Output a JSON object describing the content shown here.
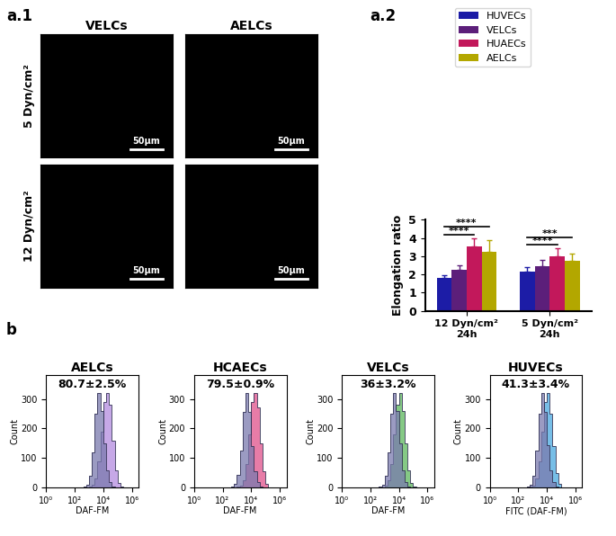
{
  "panel_labels": [
    "a.1",
    "a.2",
    "b"
  ],
  "micrographs": {
    "columns": [
      "VELCs",
      "AELCs"
    ],
    "rows": [
      "5 Dyn/cm²",
      "12 Dyn/cm²"
    ],
    "scale_bar": "50µm"
  },
  "chart_data": [
    {
      "type": "bar",
      "categories": [
        "12 Dyn/cm²\n24h",
        "5 Dyn/cm²\n24h"
      ],
      "y_label": "Elongation ratio",
      "ylim": [
        0,
        5
      ],
      "yticks": [
        0,
        1,
        2,
        3,
        4,
        5
      ],
      "legend": "upper center",
      "series": [
        {
          "name": "HUVECs",
          "color": "#1c1ca6",
          "values": [
            1.8,
            2.15
          ],
          "errors": [
            0.15,
            0.25
          ]
        },
        {
          "name": "VELCs",
          "color": "#5c1f7a",
          "values": [
            2.25,
            2.45
          ],
          "errors": [
            0.25,
            0.35
          ]
        },
        {
          "name": "HUAECs",
          "color": "#c2185b",
          "values": [
            3.55,
            3.0
          ],
          "errors": [
            0.45,
            0.45
          ]
        },
        {
          "name": "AELCs",
          "color": "#b3a700",
          "values": [
            3.25,
            2.75
          ],
          "errors": [
            0.65,
            0.4
          ]
        }
      ],
      "significance": [
        {
          "category": 0,
          "from": "HUVECs",
          "to": "HUAECs",
          "label": "****"
        },
        {
          "category": 0,
          "from": "HUVECs",
          "to": "AELCs",
          "label": "****"
        },
        {
          "category": 1,
          "from": "HUVECs",
          "to": "HUAECs",
          "label": "****"
        },
        {
          "category": 1,
          "from": "HUVECs",
          "to": "AELCs",
          "label": "***"
        }
      ]
    },
    {
      "type": "histogram",
      "title": "AELCs",
      "annotation": "80.7±2.5%",
      "x_label": "DAF-FM",
      "y_label": "Count",
      "log": "x",
      "xlim": [
        1,
        3000000
      ],
      "xticks": [
        {
          "value": 1,
          "label": "10⁰"
        },
        {
          "value": 100,
          "label": "10²"
        },
        {
          "value": 10000,
          "label": "10⁴"
        },
        {
          "value": 1000000,
          "label": "10⁶"
        }
      ],
      "ylim": [
        0,
        380
      ],
      "yticks": [
        0,
        100,
        200,
        300
      ],
      "bins": [
        251.19,
        398.11,
        630.96,
        1000,
        1584.89,
        2511.89,
        3981.07,
        6309.57,
        10000,
        15848.93,
        25118.86,
        39810.72,
        63095.73,
        100000,
        158489.32,
        251188.64
      ],
      "series": [
        {
          "color": "#b38be0",
          "values": [
            0,
            0,
            1,
            3,
            10,
            30,
            90,
            190,
            290,
            320,
            280,
            160,
            60,
            15,
            3
          ]
        },
        {
          "color": "#7a7aae",
          "values": [
            1,
            3,
            10,
            40,
            120,
            250,
            320,
            260,
            150,
            60,
            20,
            5,
            1,
            0,
            0
          ]
        }
      ]
    },
    {
      "type": "histogram",
      "title": "HCAECs",
      "annotation": "79.5±0.9%",
      "x_label": "DAF-FM",
      "y_label": "Count",
      "log": "x",
      "xlim": [
        1,
        3000000
      ],
      "xticks": [
        {
          "value": 1,
          "label": "10⁰"
        },
        {
          "value": 100,
          "label": "10²"
        },
        {
          "value": 10000,
          "label": "10⁴"
        },
        {
          "value": 1000000,
          "label": "10⁶"
        }
      ],
      "ylim": [
        0,
        380
      ],
      "yticks": [
        0,
        100,
        200,
        300
      ],
      "bins": [
        251.19,
        398.11,
        630.96,
        1000,
        1584.89,
        2511.89,
        3981.07,
        6309.57,
        10000,
        15848.93,
        25118.86,
        39810.72,
        63095.73,
        100000,
        158489.32,
        251188.64
      ],
      "series": [
        {
          "color": "#e0508a",
          "values": [
            0,
            0,
            1,
            3,
            8,
            25,
            80,
            180,
            290,
            320,
            270,
            150,
            55,
            12,
            2
          ]
        },
        {
          "color": "#7a7aae",
          "values": [
            1,
            3,
            12,
            45,
            125,
            255,
            320,
            255,
            140,
            55,
            18,
            5,
            1,
            0,
            0
          ]
        }
      ]
    },
    {
      "type": "histogram",
      "title": "VELCs",
      "annotation": "36±3.2%",
      "x_label": "DAF-FM",
      "y_label": "Count",
      "log": "x",
      "xlim": [
        1,
        3000000
      ],
      "xticks": [
        {
          "value": 1,
          "label": "10⁰"
        },
        {
          "value": 100,
          "label": "10²"
        },
        {
          "value": 10000,
          "label": "10⁴"
        },
        {
          "value": 1000000,
          "label": "10⁶"
        }
      ],
      "ylim": [
        0,
        380
      ],
      "yticks": [
        0,
        100,
        200,
        300
      ],
      "bins": [
        251.19,
        398.11,
        630.96,
        1000,
        1584.89,
        2511.89,
        3981.07,
        6309.57,
        10000,
        15848.93,
        25118.86,
        39810.72,
        63095.73,
        100000,
        158489.32,
        251188.64
      ],
      "series": [
        {
          "color": "#5cb85c",
          "values": [
            0,
            0,
            2,
            6,
            25,
            80,
            180,
            280,
            320,
            260,
            150,
            60,
            15,
            3,
            0
          ]
        },
        {
          "color": "#7a7aae",
          "values": [
            1,
            3,
            10,
            40,
            120,
            250,
            320,
            260,
            150,
            60,
            20,
            5,
            1,
            0,
            0
          ]
        }
      ]
    },
    {
      "type": "histogram",
      "title": "HUVECs",
      "annotation": "41.3±3.4%",
      "x_label": "FITC (DAF-FM)",
      "y_label": "Count",
      "log": "x",
      "xlim": [
        1,
        3000000
      ],
      "xticks": [
        {
          "value": 1,
          "label": "10⁰"
        },
        {
          "value": 100,
          "label": "10²"
        },
        {
          "value": 10000,
          "label": "10⁴"
        },
        {
          "value": 1000000,
          "label": "10⁶"
        }
      ],
      "ylim": [
        0,
        380
      ],
      "yticks": [
        0,
        100,
        200,
        300
      ],
      "bins": [
        251.19,
        398.11,
        630.96,
        1000,
        1584.89,
        2511.89,
        3981.07,
        6309.57,
        10000,
        15848.93,
        25118.86,
        39810.72,
        63095.73,
        100000,
        158489.32,
        251188.64
      ],
      "series": [
        {
          "color": "#4aa8e0",
          "values": [
            0,
            1,
            3,
            8,
            30,
            90,
            190,
            290,
            320,
            250,
            140,
            50,
            12,
            2,
            0
          ]
        },
        {
          "color": "#7a7aae",
          "values": [
            1,
            3,
            10,
            42,
            125,
            250,
            320,
            255,
            145,
            58,
            20,
            5,
            1,
            0,
            0
          ]
        }
      ]
    }
  ]
}
